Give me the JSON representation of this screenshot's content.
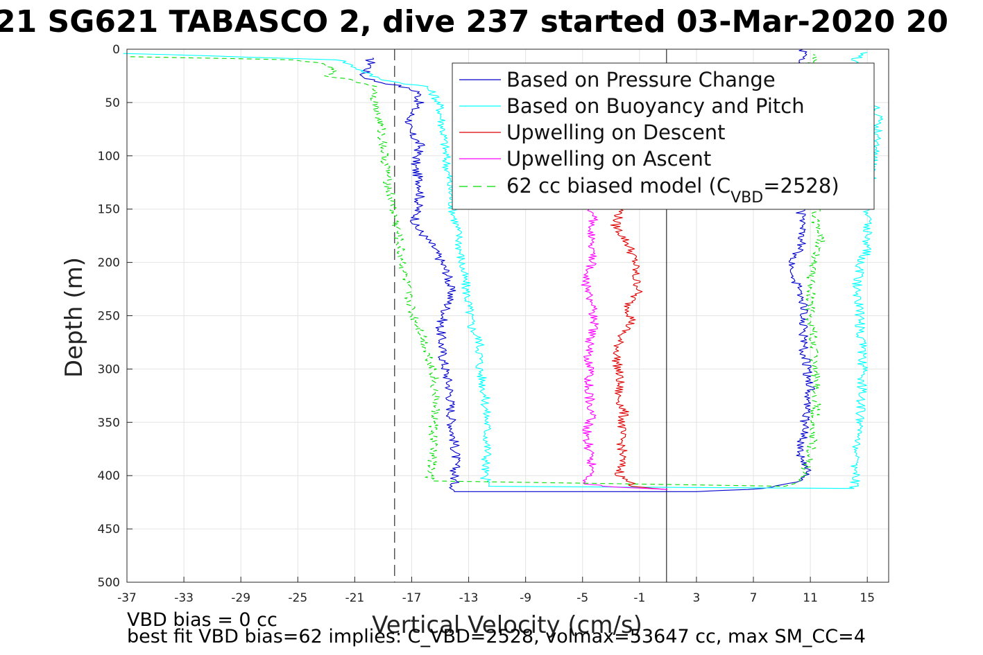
{
  "chart_data": {
    "type": "line",
    "title": "21 SG621 TABASCO 2, dive 237 started 03-Mar-2020 20",
    "xlabel": "Vertical Velocity (cm/s)",
    "ylabel": "Depth (m)",
    "xlim": [
      -37,
      16.5
    ],
    "ylim": [
      500,
      0
    ],
    "y_reversed": true,
    "grid": true,
    "xticks": [
      -37,
      -33,
      -29,
      -25,
      -21,
      -17,
      -13,
      -9,
      -5,
      -1,
      3,
      7,
      11,
      15
    ],
    "yticks": [
      0,
      50,
      100,
      150,
      200,
      250,
      300,
      350,
      400,
      450,
      500
    ],
    "legend_position": "top-right",
    "vertical_lines": [
      {
        "x": -18.2,
        "style": "dashed",
        "color": "#000000"
      },
      {
        "x": 0.9,
        "style": "solid",
        "color": "#000000"
      }
    ],
    "series": [
      {
        "name": "Based on Pressure Change",
        "color": "#0000cc",
        "style": "solid",
        "points": [
          [
            -20,
            8
          ],
          [
            -19.8,
            15
          ],
          [
            -20.5,
            25
          ],
          [
            -19.5,
            30
          ],
          [
            -18,
            34
          ],
          [
            -16.5,
            40
          ],
          [
            -16.5,
            50
          ],
          [
            -17,
            60
          ],
          [
            -17.3,
            75
          ],
          [
            -16.4,
            90
          ],
          [
            -16.8,
            110
          ],
          [
            -16.3,
            130
          ],
          [
            -16.6,
            150
          ],
          [
            -16.8,
            165
          ],
          [
            -15.5,
            185
          ],
          [
            -14.5,
            210
          ],
          [
            -14.2,
            230
          ],
          [
            -15,
            260
          ],
          [
            -14.8,
            290
          ],
          [
            -14.3,
            320
          ],
          [
            -14.2,
            350
          ],
          [
            -13.9,
            380
          ],
          [
            -14,
            405
          ],
          [
            -14,
            415
          ],
          [
            3,
            415
          ],
          [
            8,
            412
          ],
          [
            10.6,
            405
          ],
          [
            10.8,
            395
          ],
          [
            10.3,
            380
          ],
          [
            10.6,
            350
          ],
          [
            11,
            320
          ],
          [
            10.5,
            280
          ],
          [
            10.5,
            240
          ],
          [
            10,
            220
          ],
          [
            9.8,
            200
          ],
          [
            10.5,
            180
          ],
          [
            10.3,
            150
          ],
          [
            10.3,
            100
          ],
          [
            10.2,
            50
          ],
          [
            10.3,
            10
          ],
          [
            10.5,
            0
          ]
        ]
      },
      {
        "name": "Based on Buoyancy and Pitch",
        "color": "#00ffff",
        "style": "solid",
        "points": [
          [
            -37,
            4
          ],
          [
            -22,
            10
          ],
          [
            -20.5,
            20
          ],
          [
            -19.8,
            25
          ],
          [
            -18.5,
            30
          ],
          [
            -16,
            35
          ],
          [
            -15.3,
            45
          ],
          [
            -15,
            55
          ],
          [
            -14.8,
            75
          ],
          [
            -14.6,
            100
          ],
          [
            -14.3,
            130
          ],
          [
            -14.1,
            150
          ],
          [
            -13.7,
            175
          ],
          [
            -13.5,
            200
          ],
          [
            -13.1,
            230
          ],
          [
            -12.8,
            260
          ],
          [
            -12.2,
            275
          ],
          [
            -12.2,
            300
          ],
          [
            -11.9,
            320
          ],
          [
            -11.7,
            350
          ],
          [
            -11.7,
            380
          ],
          [
            -11.9,
            400
          ],
          [
            -11.6,
            410
          ],
          [
            14,
            412
          ],
          [
            14.2,
            405
          ],
          [
            14.1,
            390
          ],
          [
            14.5,
            350
          ],
          [
            14.7,
            300
          ],
          [
            14.5,
            260
          ],
          [
            14.3,
            220
          ],
          [
            14.5,
            200
          ],
          [
            15,
            190
          ],
          [
            15,
            150
          ],
          [
            15.8,
            68
          ],
          [
            15,
            30
          ],
          [
            14,
            10
          ],
          [
            15,
            3
          ]
        ]
      },
      {
        "name": "Upwelling on Descent",
        "color": "#dd0000",
        "style": "solid",
        "points": [
          [
            -2.3,
            150
          ],
          [
            -2.7,
            165
          ],
          [
            -2.2,
            175
          ],
          [
            -1.7,
            185
          ],
          [
            -1.3,
            200
          ],
          [
            -1.3,
            215
          ],
          [
            -1,
            225
          ],
          [
            -1.8,
            240
          ],
          [
            -1.5,
            255
          ],
          [
            -2.4,
            270
          ],
          [
            -2.6,
            290
          ],
          [
            -2.4,
            310
          ],
          [
            -2.5,
            325
          ],
          [
            -2.1,
            340
          ],
          [
            -2.3,
            360
          ],
          [
            -2.2,
            380
          ],
          [
            -2.4,
            400
          ],
          [
            -1.3,
            410
          ],
          [
            0.9,
            413
          ]
        ]
      },
      {
        "name": "Upwelling on Ascent",
        "color": "#ff00ff",
        "style": "solid",
        "points": [
          [
            0.9,
            413
          ],
          [
            -3.5,
            410
          ],
          [
            -5,
            407
          ],
          [
            -4.2,
            395
          ],
          [
            -4.5,
            380
          ],
          [
            -4.7,
            360
          ],
          [
            -4.3,
            340
          ],
          [
            -4.6,
            320
          ],
          [
            -4.5,
            300
          ],
          [
            -4.6,
            280
          ],
          [
            -4.2,
            260
          ],
          [
            -4.3,
            240
          ],
          [
            -4.8,
            220
          ],
          [
            -4.3,
            200
          ],
          [
            -4.5,
            180
          ],
          [
            -4.2,
            160
          ],
          [
            -4.5,
            150
          ]
        ]
      },
      {
        "name": "62 cc biased model (C_VBD=2528)",
        "color": "#00dd00",
        "style": "dashed",
        "points": [
          [
            -37,
            7
          ],
          [
            -25,
            10
          ],
          [
            -23,
            15
          ],
          [
            -22.5,
            20
          ],
          [
            -22.8,
            25
          ],
          [
            -21,
            30
          ],
          [
            -19.5,
            35
          ],
          [
            -19.6,
            45
          ],
          [
            -19.5,
            55
          ],
          [
            -19.2,
            70
          ],
          [
            -19,
            90
          ],
          [
            -18.8,
            110
          ],
          [
            -18.6,
            130
          ],
          [
            -18.3,
            150
          ],
          [
            -18,
            170
          ],
          [
            -17.8,
            190
          ],
          [
            -17.5,
            210
          ],
          [
            -17.3,
            230
          ],
          [
            -16.9,
            250
          ],
          [
            -16.3,
            265
          ],
          [
            -16,
            280
          ],
          [
            -15.5,
            300
          ],
          [
            -15.3,
            330
          ],
          [
            -15.5,
            360
          ],
          [
            -15.5,
            380
          ],
          [
            -15.8,
            405
          ],
          [
            9.5,
            410
          ],
          [
            10.5,
            400
          ],
          [
            11,
            380
          ],
          [
            11.3,
            350
          ],
          [
            11.5,
            320
          ],
          [
            11.3,
            300
          ],
          [
            11.2,
            270
          ],
          [
            11,
            250
          ],
          [
            11,
            220
          ],
          [
            11.3,
            200
          ],
          [
            11.7,
            180
          ],
          [
            11.4,
            160
          ],
          [
            11.3,
            140
          ],
          [
            11.2,
            100
          ],
          [
            11.1,
            60
          ],
          [
            11,
            20
          ],
          [
            11.2,
            5
          ]
        ]
      }
    ]
  },
  "legend": {
    "entries": [
      {
        "label": "Based on Pressure Change"
      },
      {
        "label": "Based on Buoyancy and Pitch"
      },
      {
        "label": "Upwelling on Descent"
      },
      {
        "label": "Upwelling on Ascent"
      },
      {
        "label_prefix": "62 cc biased model (C",
        "label_subscript": "VBD",
        "label_suffix": "=2528)"
      }
    ]
  },
  "footer": {
    "line1": "VBD bias = 0 cc",
    "line2": "best fit VBD bias=62 implies: C_VBD=2528, volmax=53647 cc, max SM_CC=4"
  }
}
